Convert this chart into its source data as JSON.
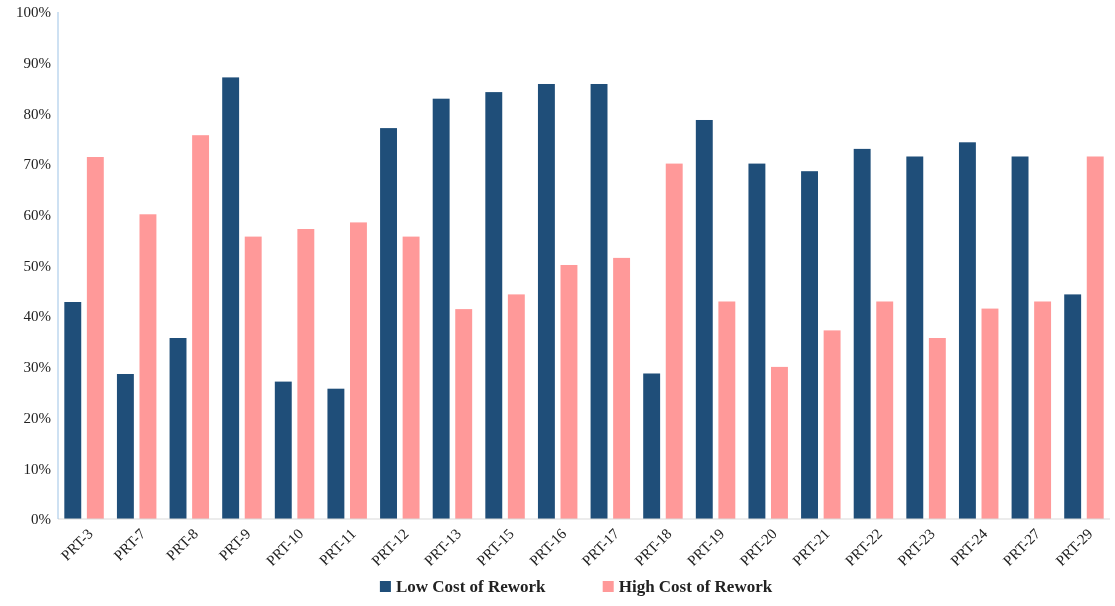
{
  "chart_data": {
    "type": "bar",
    "categories": [
      "PRT-3",
      "PRT-7",
      "PRT-8",
      "PRT-9",
      "PRT-10",
      "PRT-11",
      "PRT-12",
      "PRT-13",
      "PRT-15",
      "PRT-16",
      "PRT-17",
      "PRT-18",
      "PRT-19",
      "PRT-20",
      "PRT-21",
      "PRT-22",
      "PRT-23",
      "PRT-24",
      "PRT-27",
      "PRT-29"
    ],
    "series": [
      {
        "name": "Low Cost of Rework",
        "color": "#1f4e79",
        "values": [
          42.8,
          28.6,
          35.7,
          87.1,
          27.1,
          25.7,
          77.1,
          82.9,
          84.2,
          85.8,
          85.8,
          28.7,
          78.7,
          70.1,
          68.6,
          73.0,
          71.5,
          74.3,
          71.5,
          44.3
        ]
      },
      {
        "name": "High Cost of Rework",
        "color": "#ff9999",
        "values": [
          71.4,
          60.1,
          75.7,
          55.7,
          57.2,
          58.5,
          55.7,
          41.4,
          44.3,
          50.1,
          51.5,
          70.1,
          42.9,
          30.0,
          37.2,
          42.9,
          35.7,
          41.5,
          42.9,
          71.5
        ]
      }
    ],
    "ylim": [
      0,
      100
    ],
    "yticks": [
      {
        "value": 0,
        "label": "0%"
      },
      {
        "value": 10,
        "label": "10%"
      },
      {
        "value": 20,
        "label": "20%"
      },
      {
        "value": 30,
        "label": "30%"
      },
      {
        "value": 40,
        "label": "40%"
      },
      {
        "value": 50,
        "label": "50%"
      },
      {
        "value": 60,
        "label": "60%"
      },
      {
        "value": 70,
        "label": "70%"
      },
      {
        "value": 80,
        "label": "80%"
      },
      {
        "value": 90,
        "label": "90%"
      },
      {
        "value": 100,
        "label": "100%"
      }
    ],
    "grid": false,
    "legend": "bottom"
  }
}
